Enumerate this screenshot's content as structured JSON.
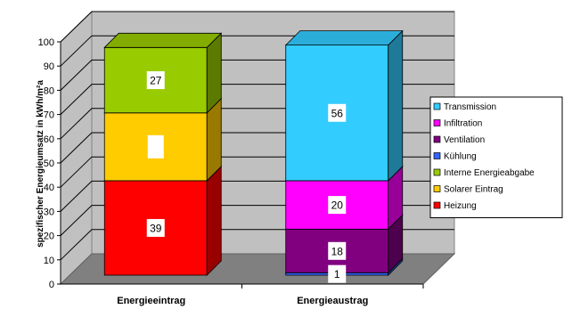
{
  "chart_data": {
    "type": "bar",
    "stacked": true,
    "three_d": true,
    "ylabel": "spezifischer Energieumsatz in kWh/m²a",
    "ylim": [
      0,
      100
    ],
    "yticks": [
      0,
      10,
      20,
      30,
      40,
      50,
      60,
      70,
      80,
      90,
      100
    ],
    "grid": true,
    "legend_position": "right",
    "categories": [
      "Energieeintrag",
      "Energieaustrag"
    ],
    "series": [
      {
        "name": "Heizung",
        "values": [
          39,
          0
        ],
        "labels": [
          "39",
          ""
        ],
        "color": "#ff0000"
      },
      {
        "name": "Solarer Eintrag",
        "values": [
          28,
          0
        ],
        "labels": [
          "",
          ""
        ],
        "color": "#ffcc00"
      },
      {
        "name": "Interne Energieabgabe",
        "values": [
          27,
          0
        ],
        "labels": [
          "27",
          ""
        ],
        "color": "#99cc00"
      },
      {
        "name": "Kühlung",
        "values": [
          0,
          1
        ],
        "labels": [
          "",
          "1"
        ],
        "color": "#3366ff"
      },
      {
        "name": "Ventilation",
        "values": [
          0,
          18
        ],
        "labels": [
          "",
          "18"
        ],
        "color": "#800080"
      },
      {
        "name": "Infiltration",
        "values": [
          0,
          20
        ],
        "labels": [
          "",
          "20"
        ],
        "color": "#ff00ff"
      },
      {
        "name": "Transmission",
        "values": [
          0,
          56
        ],
        "labels": [
          "",
          "56"
        ],
        "color": "#33ccff"
      }
    ],
    "legend_order": [
      "Transmission",
      "Infiltration",
      "Ventilation",
      "Kühlung",
      "Interne Energieabgabe",
      "Solarer Eintrag",
      "Heizung"
    ],
    "colors": {
      "wall": "#c0c0c0",
      "floor": "#808080",
      "grid": "#000000"
    }
  }
}
